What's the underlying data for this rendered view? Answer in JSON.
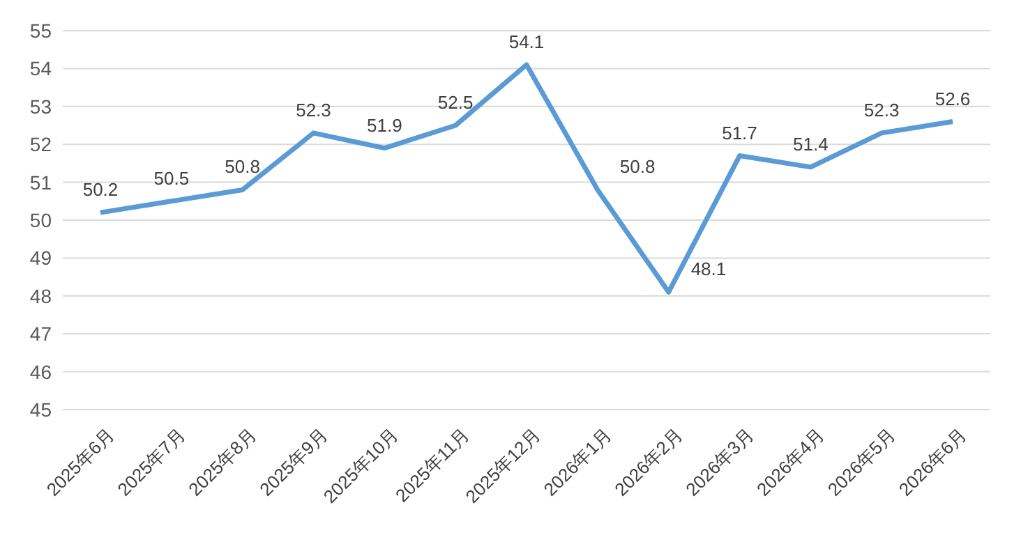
{
  "chart_data": {
    "type": "line",
    "categories": [
      "2025年6月",
      "2025年7月",
      "2025年8月",
      "2025年9月",
      "2025年10月",
      "2025年11月",
      "2025年12月",
      "2026年1月",
      "2026年2月",
      "2026年3月",
      "2026年4月",
      "2026年5月",
      "2026年6月"
    ],
    "series": [
      {
        "color": "#5b9bd5",
        "values": [
          50.2,
          50.5,
          50.8,
          52.3,
          51.9,
          52.5,
          54.1,
          50.8,
          48.1,
          51.7,
          51.4,
          52.3,
          52.6
        ]
      }
    ],
    "ylim": [
      45,
      55
    ],
    "yticks": [
      45,
      46,
      47,
      48,
      49,
      50,
      51,
      52,
      53,
      54,
      55
    ],
    "grid": "y",
    "data_labels": true,
    "marker": "none"
  }
}
